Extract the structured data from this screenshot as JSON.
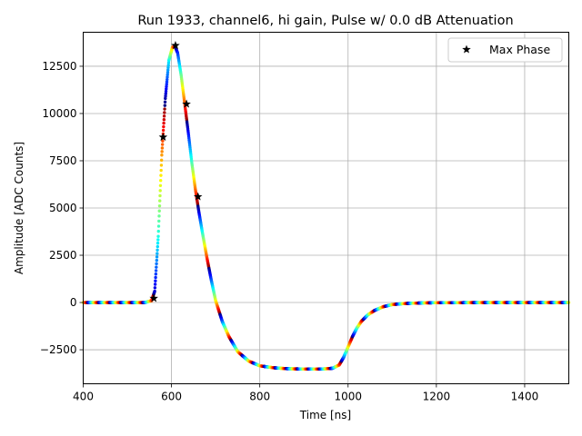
{
  "chart_data": {
    "type": "scatter",
    "title": "Run 1933, channel6, hi gain, Pulse w/ 0.0 dB Attenuation",
    "xlabel": "Time [ns]",
    "ylabel": "Amplitude [ADC Counts]",
    "xlim": [
      400,
      1500
    ],
    "ylim": [
      -4300,
      14300
    ],
    "xticks": [
      400,
      600,
      800,
      1000,
      1200,
      1400
    ],
    "yticks": [
      -2500,
      0,
      2500,
      5000,
      7500,
      10000,
      12500
    ],
    "grid": true,
    "legend_position": "top-right",
    "colormap": "jet",
    "colors": {
      "max_marker": "#000000",
      "grid": "#b0b0b0"
    },
    "waveform": {
      "x": [
        400,
        540,
        555,
        562,
        570,
        578,
        586,
        594,
        602,
        608,
        614,
        622,
        630,
        638,
        646,
        654,
        662,
        670,
        680,
        690,
        700,
        715,
        730,
        750,
        775,
        800,
        830,
        860,
        900,
        940,
        965,
        980,
        990,
        1000,
        1010,
        1020,
        1030,
        1045,
        1060,
        1080,
        1100,
        1130,
        1170,
        1220,
        1300,
        1400,
        1500
      ],
      "y": [
        0,
        0,
        100,
        600,
        3500,
        7800,
        10800,
        12800,
        13500,
        13550,
        13200,
        12000,
        10500,
        9000,
        7400,
        6000,
        4800,
        3700,
        2400,
        1200,
        100,
        -1000,
        -1800,
        -2600,
        -3100,
        -3350,
        -3450,
        -3500,
        -3520,
        -3520,
        -3480,
        -3300,
        -2900,
        -2350,
        -1800,
        -1350,
        -1000,
        -650,
        -420,
        -220,
        -110,
        -50,
        -20,
        -10,
        0,
        0,
        0
      ]
    },
    "series": [
      {
        "name": "Max Phase",
        "marker": "star",
        "x": [
          560,
          581,
          609,
          634,
          660
        ],
        "y": [
          220,
          8750,
          13600,
          10500,
          5600
        ]
      }
    ]
  }
}
